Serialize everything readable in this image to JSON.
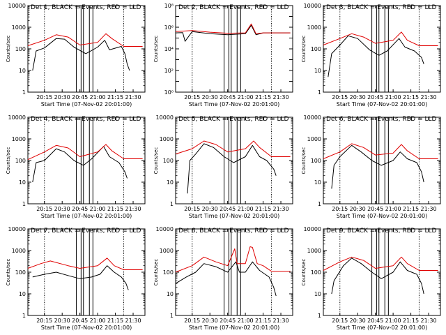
{
  "chart_data": [
    {
      "type": "line",
      "title": "Det 1, BLACK = Events, RED = LLD",
      "xlabel": "Start Time (07-Nov-02 20:01:00)",
      "ylabel": "Counts/sec",
      "yscale": "log",
      "ylim": [
        1,
        10000
      ],
      "ytick_labels": [
        "1",
        "10",
        "100",
        "1000",
        "10000"
      ],
      "xlim": [
        "20:01",
        "21:40"
      ],
      "xtick_labels": [
        "20:15",
        "20:30",
        "20:45",
        "21:00",
        "21:15",
        "21:30"
      ],
      "markers": [
        "20:15",
        "20:42",
        "20:46",
        "20:48",
        "20:53",
        "20:56",
        "21:22"
      ],
      "series": [
        {
          "name": "Events",
          "color": "#000000",
          "x": [
            "20:05",
            "20:08",
            "20:15",
            "20:25",
            "20:32",
            "20:40",
            "20:50",
            "21:00",
            "21:06",
            "21:10",
            "21:20",
            "21:23",
            "21:25",
            "21:27"
          ],
          "y": [
            10,
            80,
            110,
            300,
            280,
            120,
            60,
            120,
            250,
            90,
            130,
            60,
            20,
            10
          ]
        },
        {
          "name": "LLD",
          "color": "#e00000",
          "x": [
            "20:01",
            "20:15",
            "20:25",
            "20:35",
            "20:45",
            "21:00",
            "21:07",
            "21:12",
            "21:22",
            "21:38"
          ],
          "y": [
            140,
            250,
            450,
            350,
            150,
            200,
            500,
            300,
            130,
            130
          ]
        }
      ]
    },
    {
      "type": "line",
      "title": "Det 2, BLACK = Events, RED = LLD",
      "xlabel": "Start Time (07-Nov-02 20:01:00)",
      "ylabel": "Counts/sec",
      "yscale": "log",
      "ylim": [
        1,
        100000000
      ],
      "ytick_labels": [
        "10⁰",
        "10²",
        "10⁴",
        "10⁶",
        "10⁸"
      ],
      "xlim": [
        "20:01",
        "21:40"
      ],
      "xtick_labels": [
        "20:15",
        "20:30",
        "20:45",
        "21:00",
        "21:15",
        "21:30"
      ],
      "markers": [
        "20:15",
        "20:42",
        "20:46",
        "20:48",
        "20:53",
        "20:56",
        "21:22"
      ],
      "series": [
        {
          "name": "Events",
          "color": "#000000",
          "x": [
            "20:01",
            "20:07",
            "20:09",
            "20:15",
            "20:30",
            "20:45",
            "21:00",
            "21:05",
            "21:09",
            "21:15",
            "21:25",
            "21:38"
          ],
          "y": [
            300000,
            320000,
            50000,
            400000,
            250000,
            200000,
            250000,
            1500000,
            200000,
            300000,
            300000,
            300000
          ]
        },
        {
          "name": "LLD",
          "color": "#e00000",
          "x": [
            "20:01",
            "20:15",
            "20:30",
            "20:45",
            "21:00",
            "21:05",
            "21:09",
            "21:15",
            "21:38"
          ],
          "y": [
            400000,
            500000,
            350000,
            280000,
            300000,
            2000000,
            250000,
            300000,
            300000
          ]
        }
      ]
    },
    {
      "type": "line",
      "title": "Det 3, BLACK = Events, RED = LLD",
      "xlabel": "Start Time (07-Nov-02 20:01:00)",
      "ylabel": "Counts/sec",
      "yscale": "log",
      "ylim": [
        1,
        10000
      ],
      "ytick_labels": [
        "1",
        "10",
        "100",
        "1000",
        "10000"
      ],
      "xlim": [
        "20:01",
        "21:40"
      ],
      "xtick_labels": [
        "20:15",
        "20:30",
        "20:45",
        "21:00",
        "21:15",
        "21:30"
      ],
      "markers": [
        "20:15",
        "20:42",
        "20:46",
        "20:48",
        "20:53",
        "20:56",
        "21:22"
      ],
      "series": [
        {
          "name": "Events",
          "color": "#000000",
          "x": [
            "20:05",
            "20:08",
            "20:15",
            "20:22",
            "20:30",
            "20:40",
            "20:48",
            "20:55",
            "21:05",
            "21:10",
            "21:18",
            "21:24",
            "21:26"
          ],
          "y": [
            5,
            60,
            150,
            400,
            300,
            90,
            50,
            80,
            300,
            120,
            80,
            40,
            20
          ]
        },
        {
          "name": "LLD",
          "color": "#e00000",
          "x": [
            "20:01",
            "20:15",
            "20:25",
            "20:35",
            "20:45",
            "21:00",
            "21:07",
            "21:12",
            "21:22",
            "21:38"
          ],
          "y": [
            150,
            300,
            500,
            350,
            180,
            250,
            600,
            250,
            140,
            140
          ]
        }
      ]
    },
    {
      "type": "line",
      "title": "Det 4, BLACK = Events, RED = LLD",
      "xlabel": "Start Time (07-Nov-02 20:01:00)",
      "ylabel": "Counts/sec",
      "yscale": "log",
      "ylim": [
        1,
        10000
      ],
      "ytick_labels": [
        "1",
        "10",
        "100",
        "1000",
        "10000"
      ],
      "xlim": [
        "20:01",
        "21:40"
      ],
      "xtick_labels": [
        "20:15",
        "20:30",
        "20:45",
        "21:00",
        "21:15",
        "21:30"
      ],
      "markers": [
        "20:15",
        "20:42",
        "20:46",
        "20:48",
        "20:53",
        "20:56",
        "21:22"
      ],
      "series": [
        {
          "name": "Events",
          "color": "#000000",
          "x": [
            "20:05",
            "20:08",
            "20:15",
            "20:25",
            "20:32",
            "20:40",
            "20:48",
            "20:55",
            "21:05",
            "21:10",
            "21:18",
            "21:23",
            "21:25"
          ],
          "y": [
            10,
            80,
            100,
            350,
            250,
            100,
            60,
            120,
            450,
            150,
            80,
            30,
            15
          ]
        },
        {
          "name": "LLD",
          "color": "#e00000",
          "x": [
            "20:01",
            "20:15",
            "20:25",
            "20:35",
            "20:45",
            "21:00",
            "21:07",
            "21:12",
            "21:22",
            "21:38"
          ],
          "y": [
            110,
            250,
            500,
            380,
            150,
            250,
            550,
            280,
            120,
            120
          ]
        }
      ]
    },
    {
      "type": "line",
      "title": "Det 5, BLACK = Events, RED = LLD",
      "xlabel": "Start Time (07-Nov-02 20:01:00)",
      "ylabel": "Counts/sec",
      "yscale": "log",
      "ylim": [
        1,
        10000
      ],
      "ytick_labels": [
        "1",
        "10",
        "100",
        "1000",
        "10000"
      ],
      "xlim": [
        "20:01",
        "21:40"
      ],
      "xtick_labels": [
        "20:15",
        "20:30",
        "20:45",
        "21:00",
        "21:15",
        "21:30"
      ],
      "markers": [
        "20:15",
        "20:42",
        "20:46",
        "20:48",
        "20:53",
        "20:56",
        "21:22"
      ],
      "series": [
        {
          "name": "Events",
          "color": "#000000",
          "x": [
            "20:11",
            "20:13",
            "20:18",
            "20:25",
            "20:33",
            "20:42",
            "20:50",
            "21:00",
            "21:06",
            "21:12",
            "21:18",
            "21:24",
            "21:26"
          ],
          "y": [
            3,
            100,
            200,
            600,
            400,
            150,
            80,
            150,
            500,
            150,
            100,
            40,
            20
          ]
        },
        {
          "name": "LLD",
          "color": "#e00000",
          "x": [
            "20:01",
            "20:15",
            "20:25",
            "20:35",
            "20:45",
            "21:00",
            "21:07",
            "21:12",
            "21:22",
            "21:38"
          ],
          "y": [
            200,
            350,
            800,
            550,
            250,
            350,
            800,
            400,
            150,
            150
          ]
        }
      ]
    },
    {
      "type": "line",
      "title": "Det 6, BLACK = Events, RED = LLD",
      "xlabel": "Start Time (07-Nov-02 20:01:00)",
      "ylabel": "Counts/sec",
      "yscale": "log",
      "ylim": [
        1,
        10000
      ],
      "ytick_labels": [
        "1",
        "10",
        "100",
        "1000",
        "10000"
      ],
      "xlim": [
        "20:01",
        "21:40"
      ],
      "xtick_labels": [
        "20:15",
        "20:30",
        "20:45",
        "21:00",
        "21:15",
        "21:30"
      ],
      "markers": [
        "20:15",
        "20:42",
        "20:46",
        "20:48",
        "20:53",
        "20:56",
        "21:22"
      ],
      "series": [
        {
          "name": "Events",
          "color": "#000000",
          "x": [
            "20:08",
            "20:10",
            "20:15",
            "20:25",
            "20:33",
            "20:42",
            "20:50",
            "21:00",
            "21:06",
            "21:12",
            "21:20",
            "21:24",
            "21:26"
          ],
          "y": [
            5,
            60,
            150,
            500,
            250,
            100,
            60,
            100,
            250,
            120,
            80,
            30,
            10
          ]
        },
        {
          "name": "LLD",
          "color": "#e00000",
          "x": [
            "20:01",
            "20:15",
            "20:25",
            "20:35",
            "20:45",
            "21:00",
            "21:07",
            "21:12",
            "21:22",
            "21:38"
          ],
          "y": [
            120,
            250,
            600,
            400,
            180,
            220,
            550,
            280,
            120,
            120
          ]
        }
      ]
    },
    {
      "type": "line",
      "title": "Det 7, BLACK = Events, RED = LLD",
      "xlabel": "Start Time (07-Nov-02 20:01:00)",
      "ylabel": "Counts/sec",
      "yscale": "log",
      "ylim": [
        1,
        10000
      ],
      "ytick_labels": [
        "1",
        "10",
        "100",
        "1000",
        "10000"
      ],
      "xlim": [
        "20:01",
        "21:40"
      ],
      "xtick_labels": [
        "20:15",
        "20:30",
        "20:45",
        "21:00",
        "21:15",
        "21:30"
      ],
      "markers": [
        "20:15",
        "20:42",
        "20:46",
        "20:48",
        "20:53",
        "20:56",
        "21:22"
      ],
      "series": [
        {
          "name": "Events",
          "color": "#000000",
          "x": [
            "20:05",
            "20:15",
            "20:25",
            "20:35",
            "20:45",
            "20:55",
            "21:02",
            "21:08",
            "21:14",
            "21:20",
            "21:24",
            "21:26"
          ],
          "y": [
            60,
            80,
            100,
            70,
            50,
            60,
            80,
            200,
            100,
            60,
            30,
            15
          ]
        },
        {
          "name": "LLD",
          "color": "#e00000",
          "x": [
            "20:01",
            "20:12",
            "20:20",
            "20:35",
            "20:45",
            "21:00",
            "21:08",
            "21:14",
            "21:22",
            "21:38"
          ],
          "y": [
            150,
            250,
            330,
            200,
            150,
            200,
            450,
            200,
            130,
            130
          ]
        }
      ]
    },
    {
      "type": "line",
      "title": "Det 8, BLACK = Events, RED = LLD",
      "xlabel": "Start Time (07-Nov-02 20:01:00)",
      "ylabel": "Counts/sec",
      "yscale": "log",
      "ylim": [
        1,
        10000
      ],
      "ytick_labels": [
        "1",
        "10",
        "100",
        "1000",
        "10000"
      ],
      "xlim": [
        "20:01",
        "21:40"
      ],
      "xtick_labels": [
        "20:15",
        "20:30",
        "20:45",
        "21:00",
        "21:15",
        "21:30"
      ],
      "markers": [
        "20:15",
        "20:42",
        "20:46",
        "20:48",
        "20:53",
        "20:56",
        "21:22"
      ],
      "series": [
        {
          "name": "Events",
          "color": "#000000",
          "x": [
            "20:01",
            "20:10",
            "20:18",
            "20:25",
            "20:35",
            "20:45",
            "20:52",
            "20:55",
            "21:00",
            "21:06",
            "21:12",
            "21:20",
            "21:24",
            "21:26"
          ],
          "y": [
            30,
            60,
            100,
            250,
            180,
            100,
            300,
            100,
            100,
            300,
            120,
            60,
            20,
            8
          ]
        },
        {
          "name": "LLD",
          "color": "#e00000",
          "x": [
            "20:01",
            "20:15",
            "20:25",
            "20:35",
            "20:45",
            "20:51",
            "20:53",
            "21:00",
            "21:04",
            "21:06",
            "21:10",
            "21:15",
            "21:22",
            "21:38"
          ],
          "y": [
            100,
            200,
            500,
            300,
            200,
            1200,
            250,
            250,
            1500,
            1400,
            250,
            200,
            110,
            110
          ]
        }
      ]
    },
    {
      "type": "line",
      "title": "Det 9, BLACK = Events, RED = LLD",
      "xlabel": "Start Time (07-Nov-02 20:01:00)",
      "ylabel": "Counts/sec",
      "yscale": "log",
      "ylim": [
        1,
        10000
      ],
      "ytick_labels": [
        "1",
        "10",
        "100",
        "1000",
        "10000"
      ],
      "xlim": [
        "20:01",
        "21:40"
      ],
      "xtick_labels": [
        "20:15",
        "20:30",
        "20:45",
        "21:00",
        "21:15",
        "21:30"
      ],
      "markers": [
        "20:15",
        "20:42",
        "20:46",
        "20:48",
        "20:53",
        "20:56",
        "21:22"
      ],
      "series": [
        {
          "name": "Events",
          "color": "#000000",
          "x": [
            "20:08",
            "20:10",
            "20:18",
            "20:25",
            "20:33",
            "20:42",
            "20:50",
            "21:00",
            "21:06",
            "21:12",
            "21:20",
            "21:24",
            "21:26"
          ],
          "y": [
            10,
            40,
            200,
            450,
            250,
            100,
            50,
            100,
            300,
            120,
            80,
            30,
            10
          ]
        },
        {
          "name": "LLD",
          "color": "#e00000",
          "x": [
            "20:01",
            "20:15",
            "20:25",
            "20:35",
            "20:45",
            "21:00",
            "21:07",
            "21:12",
            "21:22",
            "21:38"
          ],
          "y": [
            120,
            300,
            500,
            350,
            150,
            200,
            500,
            250,
            120,
            120
          ]
        }
      ]
    }
  ]
}
